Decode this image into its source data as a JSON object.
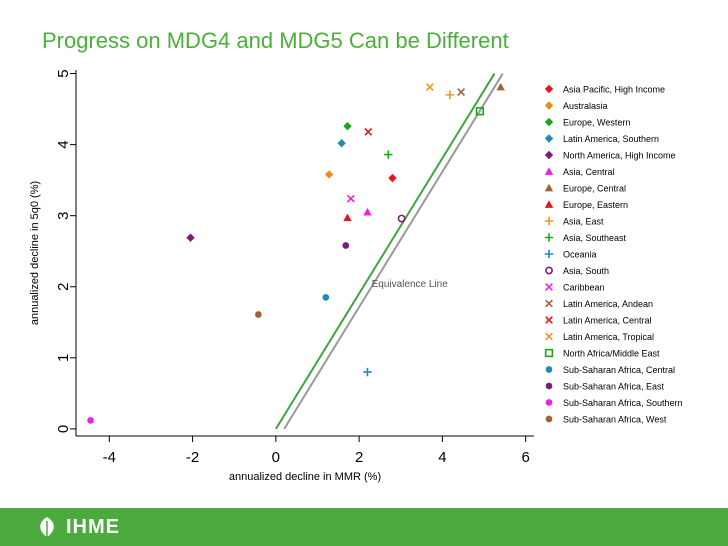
{
  "title": "Progress on MDG4 and MDG5 Can be Different",
  "footer": {
    "logo_text": "IHME"
  },
  "colors": {
    "title": "#4caf3a",
    "footer": "#4daa3f",
    "equivalence_line": "#999999",
    "fit_line": "#3ea83a"
  },
  "chart_data": {
    "type": "scatter",
    "xlabel": "annualized decline in MMR (%)",
    "ylabel": "annualized decline in 5q0 (%)",
    "xlim": [
      -4.8,
      6.2
    ],
    "ylim": [
      -0.1,
      5.05
    ],
    "xticks": [
      -4,
      -2,
      0,
      2,
      4,
      6
    ],
    "yticks": [
      0,
      1,
      2,
      3,
      4,
      5
    ],
    "grid": false,
    "legend_position": "right",
    "annotation": {
      "text": "Equivalence Line",
      "x": 2.3,
      "y": 2.0
    },
    "lines": [
      {
        "name": "equivalence-line",
        "color": "#999999",
        "x1": 0.2,
        "y1": 0,
        "x2": 5.45,
        "y2": 5.0
      },
      {
        "name": "green-line",
        "color": "#3ea83a",
        "x1": 0.0,
        "y1": 0,
        "x2": 5.25,
        "y2": 5.0
      }
    ],
    "series": [
      {
        "name": "Asia Pacific, High Income",
        "marker": "diamond",
        "color": "#e8141e",
        "points": [
          {
            "x": 2.8,
            "y": 3.53
          }
        ]
      },
      {
        "name": "Australasia",
        "marker": "diamond",
        "color": "#f08a1e",
        "points": [
          {
            "x": 1.28,
            "y": 3.58
          }
        ]
      },
      {
        "name": "Europe, Western",
        "marker": "diamond",
        "color": "#1ea51e",
        "points": [
          {
            "x": 1.72,
            "y": 4.26
          }
        ]
      },
      {
        "name": "Latin America, Southern",
        "marker": "diamond",
        "color": "#1e8cb4",
        "points": [
          {
            "x": 1.58,
            "y": 4.02
          }
        ]
      },
      {
        "name": "North America, High Income",
        "marker": "diamond",
        "color": "#7a1e7a",
        "points": [
          {
            "x": -2.05,
            "y": 2.69
          }
        ]
      },
      {
        "name": "Asia, Central",
        "marker": "triangle",
        "color": "#f01ee6",
        "points": [
          {
            "x": 2.2,
            "y": 3.05
          }
        ]
      },
      {
        "name": "Europe, Central",
        "marker": "triangle",
        "color": "#a0603c",
        "points": [
          {
            "x": 5.4,
            "y": 4.81
          }
        ]
      },
      {
        "name": "Europe, Eastern",
        "marker": "triangle",
        "color": "#e8141e",
        "points": [
          {
            "x": 1.72,
            "y": 2.97
          }
        ]
      },
      {
        "name": "Asia, East",
        "marker": "plus",
        "color": "#f09628",
        "points": [
          {
            "x": 4.18,
            "y": 4.7
          }
        ]
      },
      {
        "name": "Asia, Southeast",
        "marker": "plus",
        "color": "#1ea51e",
        "points": [
          {
            "x": 2.7,
            "y": 3.86
          }
        ]
      },
      {
        "name": "Oceania",
        "marker": "plus",
        "color": "#1e8cb4",
        "points": [
          {
            "x": 2.2,
            "y": 0.8
          }
        ]
      },
      {
        "name": "Asia, South",
        "marker": "circle-open",
        "color": "#7a1e7a",
        "points": [
          {
            "x": 3.02,
            "y": 2.96
          }
        ]
      },
      {
        "name": "Caribbean",
        "marker": "x",
        "color": "#f01ee6",
        "points": [
          {
            "x": 1.8,
            "y": 3.24
          }
        ]
      },
      {
        "name": "Latin America, Andean",
        "marker": "x",
        "color": "#a0603c",
        "points": [
          {
            "x": 4.45,
            "y": 4.74
          }
        ]
      },
      {
        "name": "Latin America, Central",
        "marker": "x",
        "color": "#e8141e",
        "points": [
          {
            "x": 2.22,
            "y": 4.18
          }
        ]
      },
      {
        "name": "Latin America, Tropical",
        "marker": "x",
        "color": "#f09628",
        "points": [
          {
            "x": 3.7,
            "y": 4.81
          }
        ]
      },
      {
        "name": "North Africa/Middle East",
        "marker": "square-open",
        "color": "#1ea51e",
        "points": [
          {
            "x": 4.9,
            "y": 4.47
          }
        ]
      },
      {
        "name": "Sub-Saharan Africa, Central",
        "marker": "circle",
        "color": "#1e8cb4",
        "points": [
          {
            "x": 1.2,
            "y": 1.85
          }
        ]
      },
      {
        "name": "Sub-Saharan Africa, East",
        "marker": "circle",
        "color": "#7a1e7a",
        "points": [
          {
            "x": 1.68,
            "y": 2.58
          }
        ]
      },
      {
        "name": "Sub-Saharan Africa, Southern",
        "marker": "circle",
        "color": "#f01ee6",
        "points": [
          {
            "x": -4.45,
            "y": 0.12
          }
        ]
      },
      {
        "name": "Sub-Saharan Africa, West",
        "marker": "circle",
        "color": "#a0603c",
        "points": [
          {
            "x": -0.42,
            "y": 1.61
          }
        ]
      }
    ]
  }
}
